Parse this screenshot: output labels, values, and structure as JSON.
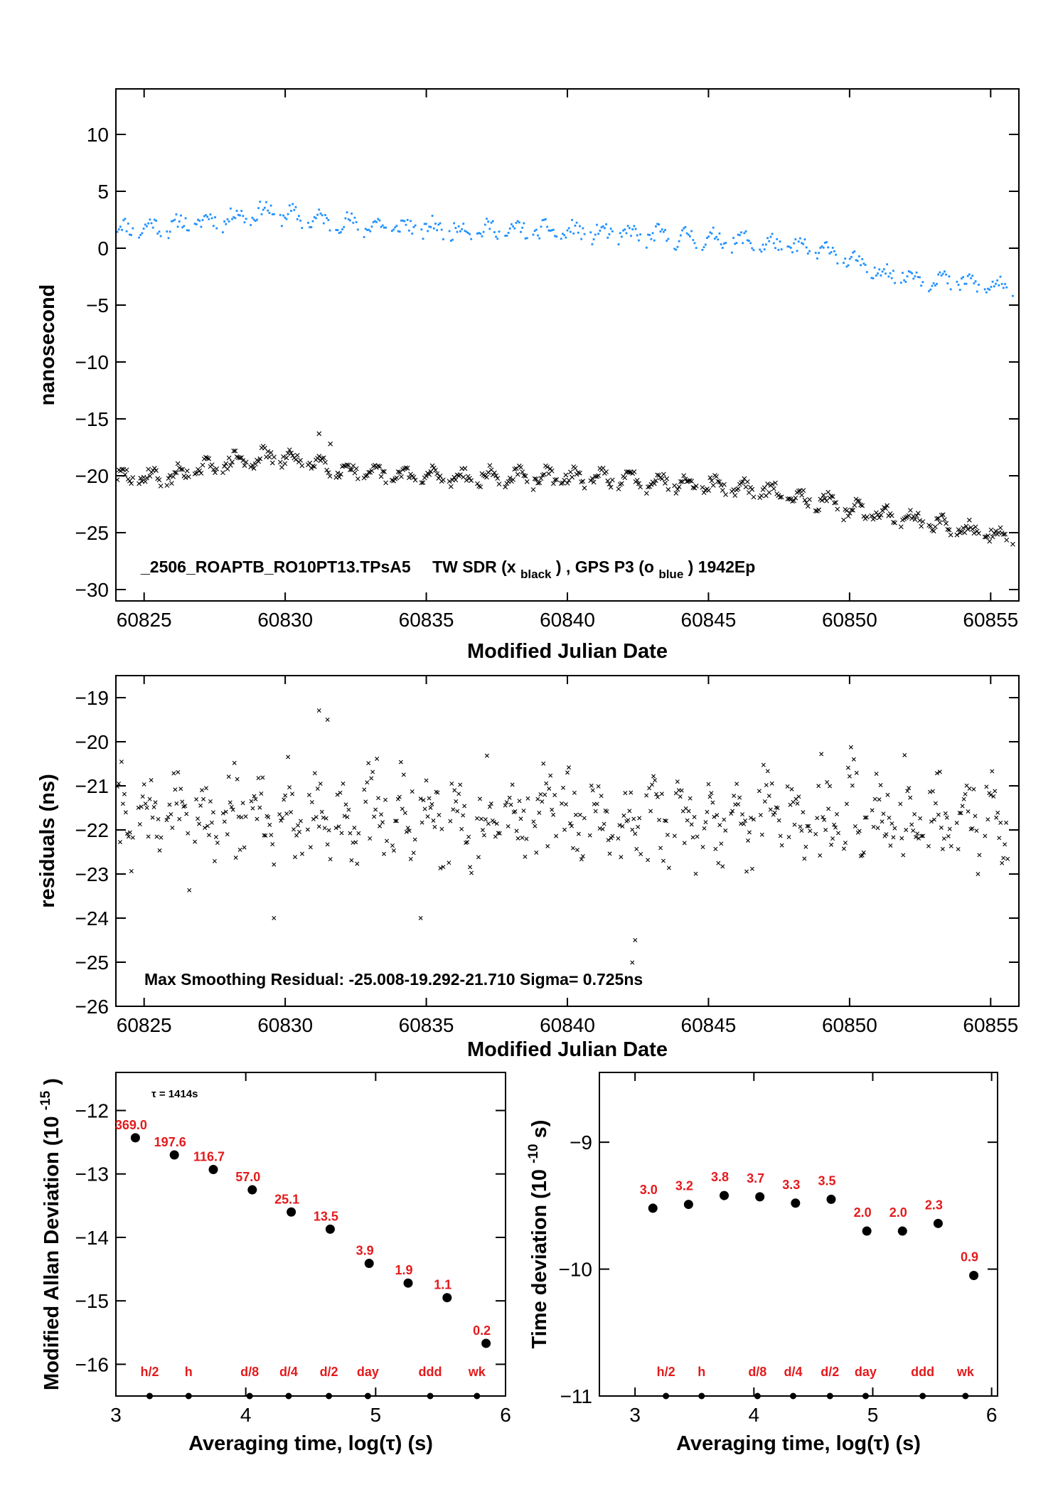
{
  "colors": {
    "tw_series": "#000000",
    "gps_series": "#1e90ff",
    "label_red": "#e31a1c",
    "background": "#ffffff"
  },
  "chart_data": [
    {
      "id": "top",
      "type": "scatter",
      "xlabel": "Modified Julian Date",
      "ylabel": "nanosecond",
      "xlim": [
        60824.0,
        60856.0
      ],
      "ylim": [
        -31,
        14
      ],
      "xticks": [
        60825,
        60830,
        60835,
        60840,
        60845,
        60850,
        60855
      ],
      "yticks": [
        10,
        5,
        0,
        -5,
        -10,
        -15,
        -20,
        -25,
        -30
      ],
      "ytick_labels": [
        "10",
        "5",
        "0",
        "−5",
        "−10",
        "−15",
        "−20",
        "−25",
        "−30"
      ],
      "annotation": {
        "file": "_2506_ROAPTB_RO10PT13.TPsA5",
        "tw_text": "TW SDR (x",
        "tw_sub": "black",
        "mid_text": ") ,  GPS P3 (o",
        "gps_sub": "blue",
        "end_text": ")  1942Ep"
      },
      "series": [
        {
          "name": "TW SDR (x black)",
          "marker": "x",
          "trend": [
            [
              60824.0,
              -20.3
            ],
            [
              60826.0,
              -20.1
            ],
            [
              60828.0,
              -18.9
            ],
            [
              60829.5,
              -18.4
            ],
            [
              60831.0,
              -18.9
            ],
            [
              60833.0,
              -20.0
            ],
            [
              60836.0,
              -20.2
            ],
            [
              60840.0,
              -20.2
            ],
            [
              60844.0,
              -20.6
            ],
            [
              60846.0,
              -21.1
            ],
            [
              60848.0,
              -21.8
            ],
            [
              60850.0,
              -23.0
            ],
            [
              60852.0,
              -23.8
            ],
            [
              60854.0,
              -24.8
            ],
            [
              60855.8,
              -25.6
            ]
          ]
        },
        {
          "name": "GPS P3 (o blue)",
          "marker": "dot",
          "trend": [
            [
              60824.0,
              1.6
            ],
            [
              60826.0,
              1.9
            ],
            [
              60828.0,
              2.6
            ],
            [
              60829.3,
              3.2
            ],
            [
              60831.0,
              2.4
            ],
            [
              60833.0,
              1.9
            ],
            [
              60836.0,
              1.6
            ],
            [
              60840.0,
              1.4
            ],
            [
              60844.0,
              0.9
            ],
            [
              60846.0,
              0.6
            ],
            [
              60848.0,
              0.0
            ],
            [
              60849.5,
              -0.4
            ],
            [
              60850.5,
              -1.8
            ],
            [
              60852.0,
              -2.5
            ],
            [
              60854.0,
              -3.1
            ],
            [
              60855.8,
              -3.7
            ]
          ]
        }
      ]
    },
    {
      "id": "middle",
      "type": "scatter",
      "xlabel": "Modified Julian Date",
      "ylabel": "residuals (ns)",
      "xlim": [
        60824.0,
        60856.0
      ],
      "ylim": [
        -26,
        -18.5
      ],
      "xticks": [
        60825,
        60830,
        60835,
        60840,
        60845,
        60850,
        60855
      ],
      "yticks": [
        -19,
        -20,
        -21,
        -22,
        -23,
        -24,
        -25,
        -26
      ],
      "ytick_labels": [
        "−19",
        "−20",
        "−21",
        "−22",
        "−23",
        "−24",
        "−25",
        "−26"
      ],
      "annotation": "Max Smoothing Residual: -25.008-19.292-21.710  Sigma= 0.725ns",
      "residual_stats": {
        "min": -25.008,
        "max": -19.292,
        "mean": -21.71,
        "sigma": 0.725
      }
    },
    {
      "id": "mdev",
      "type": "scatter",
      "xlabel": "Averaging time, log(τ) (s)",
      "ylabel": "Modified Allan Deviation (10",
      "ylabel_sup": "-15",
      "ylabel_end": ")",
      "xlim": [
        3,
        6
      ],
      "ylim": [
        -16.5,
        -11.4
      ],
      "xticks": [
        3,
        4,
        5,
        6
      ],
      "yticks": [
        -12,
        -13,
        -14,
        -15,
        -16
      ],
      "ytick_labels": [
        "−12",
        "−13",
        "−14",
        "−15",
        "−16"
      ],
      "note": "τ = 1414s",
      "points": [
        {
          "x": 3.15,
          "y": -12.43,
          "label": "369.0"
        },
        {
          "x": 3.45,
          "y": -12.7,
          "label": "197.6"
        },
        {
          "x": 3.75,
          "y": -12.93,
          "label": "116.7"
        },
        {
          "x": 4.05,
          "y": -13.25,
          "label": "57.0"
        },
        {
          "x": 4.35,
          "y": -13.6,
          "label": "25.1"
        },
        {
          "x": 4.65,
          "y": -13.87,
          "label": "13.5"
        },
        {
          "x": 4.95,
          "y": -14.41,
          "label": "3.9"
        },
        {
          "x": 5.25,
          "y": -14.72,
          "label": "1.9"
        },
        {
          "x": 5.55,
          "y": -14.95,
          "label": "1.1"
        },
        {
          "x": 5.85,
          "y": -15.67,
          "label": "0.2"
        }
      ],
      "markers": [
        {
          "x": 3.26,
          "label": "h/2"
        },
        {
          "x": 3.56,
          "label": "h"
        },
        {
          "x": 4.03,
          "label": "d/8"
        },
        {
          "x": 4.33,
          "label": "d/4"
        },
        {
          "x": 4.64,
          "label": "d/2"
        },
        {
          "x": 4.94,
          "label": "day"
        },
        {
          "x": 5.42,
          "label": "ddd"
        },
        {
          "x": 5.78,
          "label": "wk"
        }
      ]
    },
    {
      "id": "tdev",
      "type": "scatter",
      "xlabel": "Averaging time, log(τ) (s)",
      "ylabel": "Time deviation (10",
      "ylabel_sup": "-10",
      "ylabel_end": " s)",
      "xlim": [
        2.7,
        6.05
      ],
      "ylim": [
        -11,
        -8.45
      ],
      "xticks": [
        3,
        4,
        5,
        6
      ],
      "yticks": [
        -9,
        -10,
        -11
      ],
      "ytick_labels": [
        "−9",
        "−10",
        "−11"
      ],
      "points": [
        {
          "x": 3.15,
          "y": -9.52,
          "label": "3.0"
        },
        {
          "x": 3.45,
          "y": -9.49,
          "label": "3.2"
        },
        {
          "x": 3.75,
          "y": -9.42,
          "label": "3.8"
        },
        {
          "x": 4.05,
          "y": -9.43,
          "label": "3.7"
        },
        {
          "x": 4.35,
          "y": -9.48,
          "label": "3.3"
        },
        {
          "x": 4.65,
          "y": -9.45,
          "label": "3.5"
        },
        {
          "x": 4.95,
          "y": -9.7,
          "label": "2.0"
        },
        {
          "x": 5.25,
          "y": -9.7,
          "label": "2.0"
        },
        {
          "x": 5.55,
          "y": -9.64,
          "label": "2.3"
        },
        {
          "x": 5.85,
          "y": -10.05,
          "label": "0.9"
        }
      ],
      "markers": [
        {
          "x": 3.26,
          "label": "h/2"
        },
        {
          "x": 3.56,
          "label": "h"
        },
        {
          "x": 4.03,
          "label": "d/8"
        },
        {
          "x": 4.33,
          "label": "d/4"
        },
        {
          "x": 4.64,
          "label": "d/2"
        },
        {
          "x": 4.94,
          "label": "day"
        },
        {
          "x": 5.42,
          "label": "ddd"
        },
        {
          "x": 5.78,
          "label": "wk"
        }
      ]
    }
  ]
}
